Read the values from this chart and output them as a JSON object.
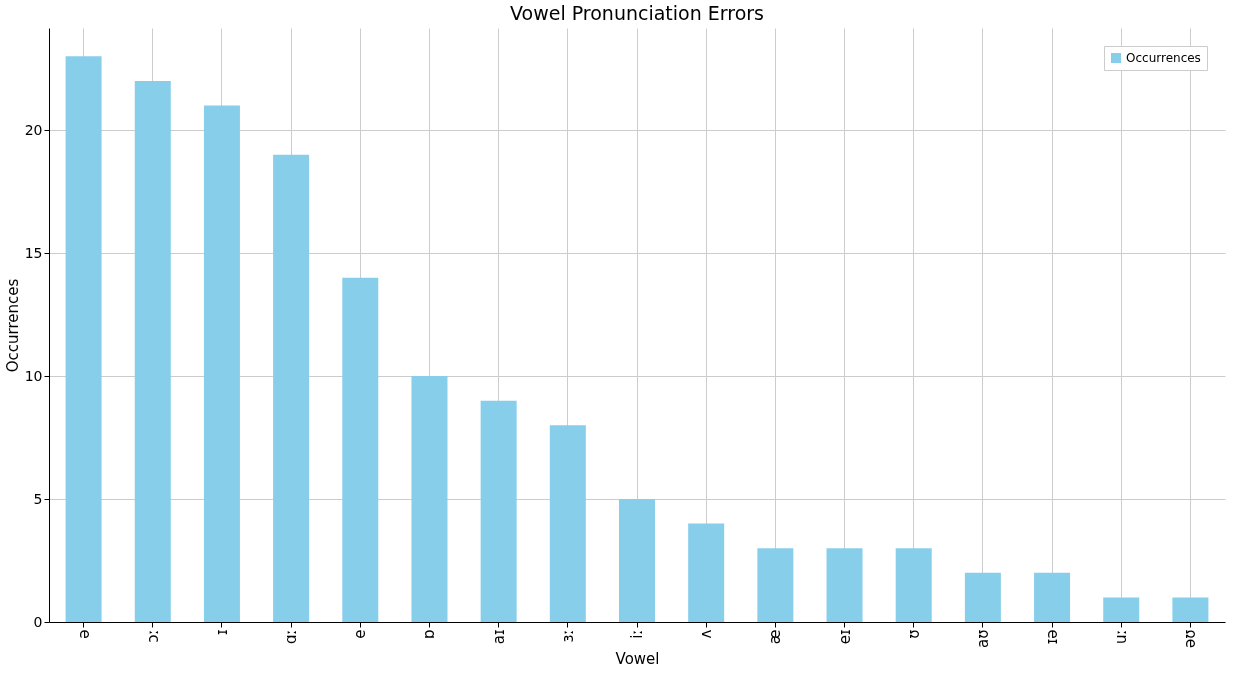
{
  "chart_data": {
    "type": "bar",
    "title": "Vowel Pronunciation Errors",
    "xlabel": "Vowel",
    "ylabel": "Occurrences",
    "categories": [
      "ə",
      "ɔː",
      "ɪ",
      "ɑː",
      "e",
      "ɒ",
      "aɪ",
      "ɜː",
      "iː",
      "ʌ",
      "æ",
      "eɪ",
      "ʊ",
      "aʊ",
      "ɪə",
      "uː",
      "əʊ"
    ],
    "series": [
      {
        "name": "Occurrences",
        "color": "#87ceeb",
        "values": [
          23,
          22,
          21,
          19,
          14,
          10,
          9,
          8,
          5,
          4,
          3,
          3,
          3,
          2,
          2,
          1,
          1
        ]
      }
    ],
    "ylim": [
      0,
      24.15
    ],
    "yticks": [
      0,
      5,
      10,
      15,
      20
    ],
    "grid": true,
    "legend": "top right"
  }
}
